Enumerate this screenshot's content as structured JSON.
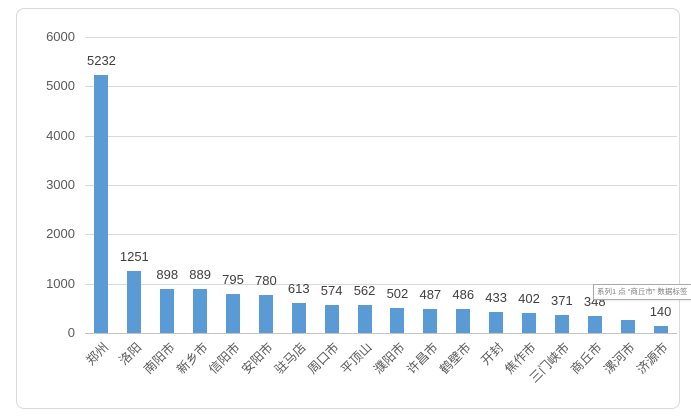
{
  "chart_data": {
    "type": "bar",
    "title": "",
    "series_name": "系列1",
    "categories": [
      "郑州",
      "洛阳",
      "南阳市",
      "新乡市",
      "信阳市",
      "安阳市",
      "驻马店",
      "周口市",
      "平顶山",
      "濮阳市",
      "许昌市",
      "鹤壁市",
      "开封",
      "焦作市",
      "三门峡市",
      "商丘市",
      "漯河市",
      "济源市"
    ],
    "values": [
      5232,
      1251,
      898,
      889,
      795,
      780,
      613,
      574,
      562,
      502,
      487,
      486,
      433,
      402,
      371,
      348,
      265,
      140
    ],
    "data_labels": [
      "5232",
      "1251",
      "898",
      "889",
      "795",
      "780",
      "613",
      "574",
      "562",
      "502",
      "487",
      "486",
      "433",
      "402",
      "371",
      "348",
      "",
      "140"
    ],
    "ylim": [
      0,
      6000
    ],
    "y_ticks": [
      0,
      1000,
      2000,
      3000,
      4000,
      5000,
      6000
    ],
    "grid": true,
    "legend": "none",
    "bar_color": "#5b9bd5"
  },
  "tooltip": {
    "text": "系列1 点 “商丘市” 数据标签"
  },
  "colors": {
    "bar": "#5b9bd5",
    "gridline": "#d9d9d9",
    "axis_text": "#595959",
    "data_label_text": "#404040",
    "frame_border": "#d9d9d9",
    "tooltip_border": "#ababab",
    "tooltip_text": "#7d7d7d"
  }
}
